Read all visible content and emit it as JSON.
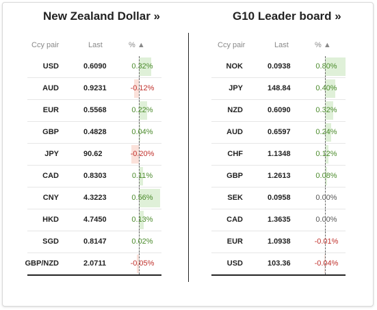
{
  "left": {
    "title": "New Zealand Dollar »",
    "headers": {
      "pair": "Ccy pair",
      "last": "Last",
      "pct": "% ▲"
    },
    "max_abs_pct": 0.56,
    "rows": [
      {
        "pair": "USD",
        "last": "0.6090",
        "pct": "0.32%",
        "value": 0.32
      },
      {
        "pair": "AUD",
        "last": "0.9231",
        "pct": "-0.12%",
        "value": -0.12
      },
      {
        "pair": "EUR",
        "last": "0.5568",
        "pct": "0.22%",
        "value": 0.22
      },
      {
        "pair": "GBP",
        "last": "0.4828",
        "pct": "0.04%",
        "value": 0.04
      },
      {
        "pair": "JPY",
        "last": "90.62",
        "pct": "-0.20%",
        "value": -0.2
      },
      {
        "pair": "CAD",
        "last": "0.8303",
        "pct": "0.11%",
        "value": 0.11
      },
      {
        "pair": "CNY",
        "last": "4.3223",
        "pct": "0.56%",
        "value": 0.56
      },
      {
        "pair": "HKD",
        "last": "4.7450",
        "pct": "0.13%",
        "value": 0.13
      },
      {
        "pair": "SGD",
        "last": "0.8147",
        "pct": "0.02%",
        "value": 0.02
      },
      {
        "pair": "GBP/NZD",
        "last": "2.0711",
        "pct": "-0.05%",
        "value": -0.05
      }
    ]
  },
  "right": {
    "title": "G10 Leader board »",
    "headers": {
      "pair": "Ccy pair",
      "last": "Last",
      "pct": "% ▲"
    },
    "max_abs_pct": 0.8,
    "rows": [
      {
        "pair": "NOK",
        "last": "0.0938",
        "pct": "0.80%",
        "value": 0.8
      },
      {
        "pair": "JPY",
        "last": "148.84",
        "pct": "0.40%",
        "value": 0.4
      },
      {
        "pair": "NZD",
        "last": "0.6090",
        "pct": "0.32%",
        "value": 0.32
      },
      {
        "pair": "AUD",
        "last": "0.6597",
        "pct": "0.24%",
        "value": 0.24
      },
      {
        "pair": "CHF",
        "last": "1.1348",
        "pct": "0.12%",
        "value": 0.12
      },
      {
        "pair": "GBP",
        "last": "1.2613",
        "pct": "0.08%",
        "value": 0.08
      },
      {
        "pair": "SEK",
        "last": "0.0958",
        "pct": "0.00%",
        "value": 0.0
      },
      {
        "pair": "CAD",
        "last": "1.3635",
        "pct": "0.00%",
        "value": 0.0
      },
      {
        "pair": "EUR",
        "last": "1.0938",
        "pct": "-0.01%",
        "value": -0.01
      },
      {
        "pair": "USD",
        "last": "103.36",
        "pct": "-0.04%",
        "value": -0.04
      }
    ]
  },
  "colors": {
    "positive_text": "#4a8a2a",
    "negative_text": "#c0302b",
    "positive_bar": "#dff0d8",
    "negative_bar": "#fbe1da"
  }
}
